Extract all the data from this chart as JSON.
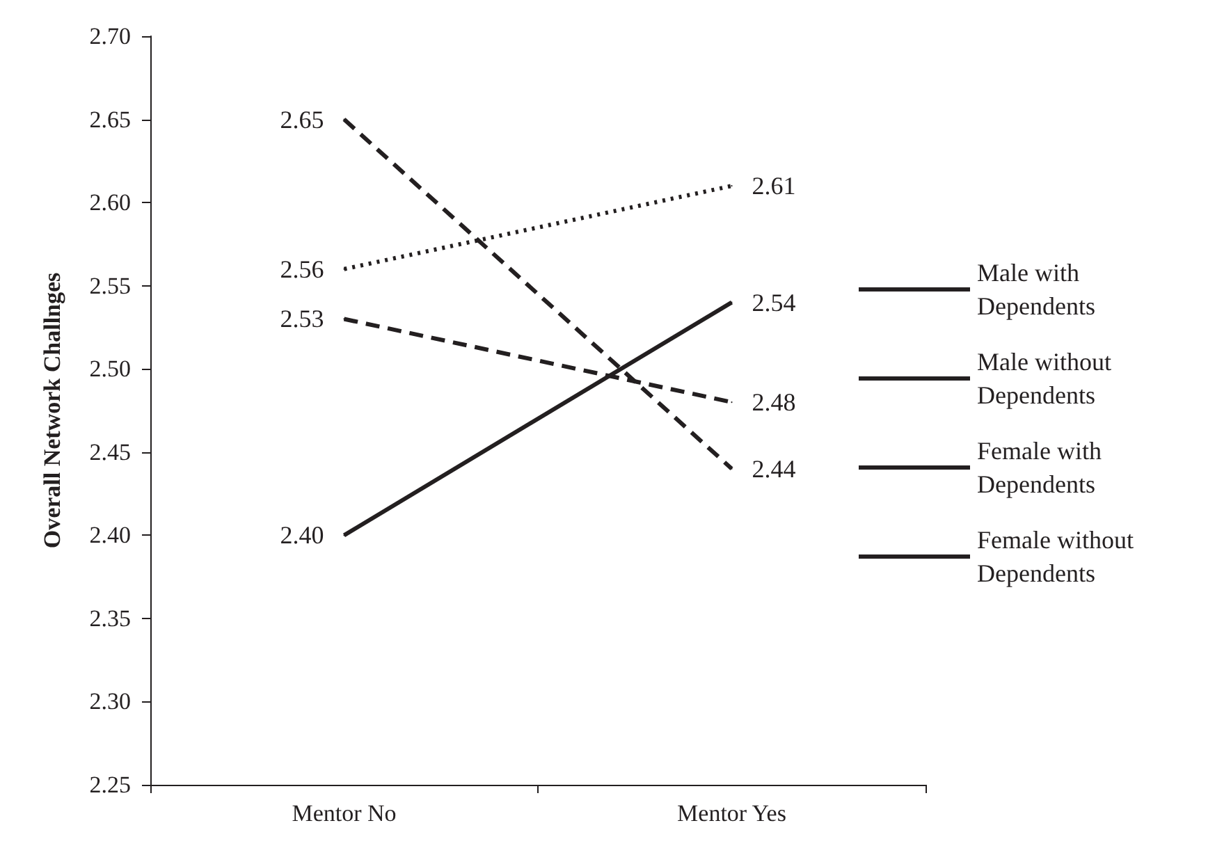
{
  "chart_data": {
    "type": "line",
    "ylabel": "Overall Network Challnges",
    "categories": [
      "Mentor No",
      "Mentor Yes"
    ],
    "series": [
      {
        "name": "Male with Dependents",
        "color": "#231f20",
        "line_style": "dashed",
        "values": [
          2.53,
          2.48
        ],
        "value_labels": [
          "2.53",
          "2.48"
        ]
      },
      {
        "name": "Male without Dependents",
        "color": "#231f20",
        "line_style": "dotted",
        "values": [
          2.56,
          2.61
        ],
        "value_labels": [
          "2.56",
          "2.61"
        ]
      },
      {
        "name": "Female with Dependents",
        "color": "#231f20",
        "line_style": "solid",
        "values": [
          2.4,
          2.54
        ],
        "value_labels": [
          "2.40",
          "2.54"
        ]
      },
      {
        "name": "Female without Dependents",
        "color": "#231f20",
        "line_style": "dashed",
        "values": [
          2.65,
          2.44
        ],
        "value_labels": [
          "2.65",
          "2.44"
        ]
      }
    ],
    "ylim": [
      2.25,
      2.7
    ],
    "yticks": [
      {
        "value": 2.25,
        "label": "2.25"
      },
      {
        "value": 2.3,
        "label": "2.30"
      },
      {
        "value": 2.35,
        "label": "2.35"
      },
      {
        "value": 2.4,
        "label": "2.40"
      },
      {
        "value": 2.45,
        "label": "2.45"
      },
      {
        "value": 2.5,
        "label": "2.50"
      },
      {
        "value": 2.55,
        "label": "2.55"
      },
      {
        "value": 2.6,
        "label": "2.60"
      },
      {
        "value": 2.65,
        "label": "2.65"
      },
      {
        "value": 2.7,
        "label": "2.70"
      }
    ],
    "legend": "right",
    "grid": false,
    "marker": "none"
  }
}
